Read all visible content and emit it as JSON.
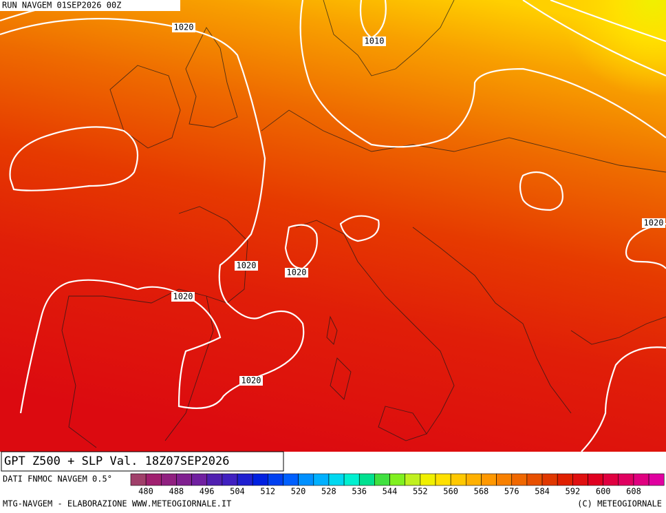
{
  "header": {
    "run": "RUN NAVGEM 01SEP2026 00Z"
  },
  "isobar_labels": [
    "1020",
    "1010",
    "1020",
    "1020",
    "1020",
    "1020",
    "1020"
  ],
  "footer": {
    "title": "GPT Z500 + SLP Val. 18Z07SEP2026",
    "source": "DATI FNMOC NAVGEM 0.5°",
    "credit_left": "MTG-NAVGEM - ELABORAZIONE WWW.METEOGIORNALE.IT",
    "credit_right": "(C) METEOGIORNALE"
  },
  "legend": {
    "ticks": [
      480,
      488,
      496,
      504,
      512,
      520,
      528,
      536,
      544,
      552,
      560,
      568,
      576,
      584,
      592,
      600,
      608
    ]
  }
}
